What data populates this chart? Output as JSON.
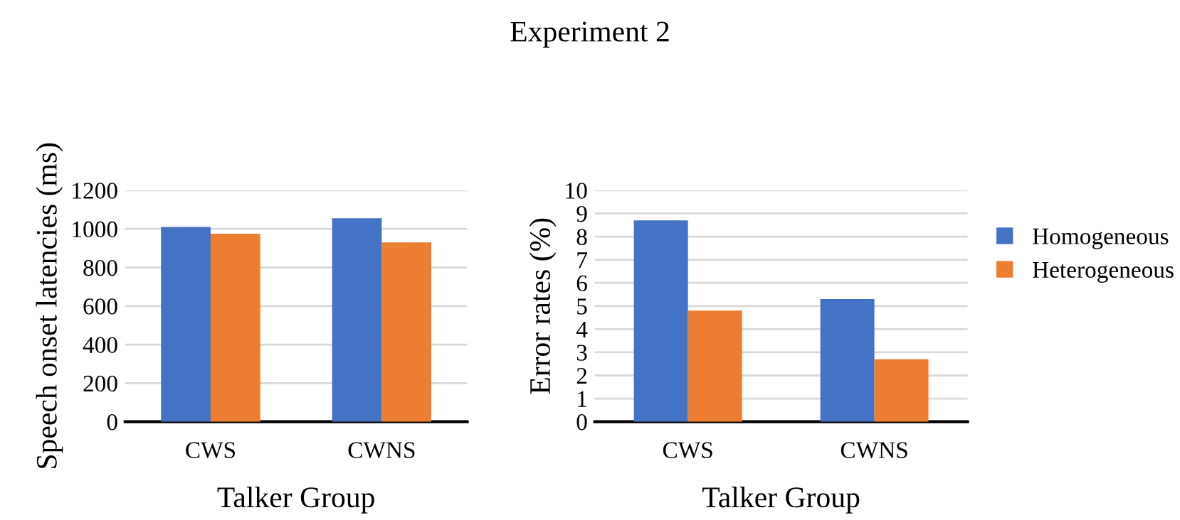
{
  "chart_data": [
    {
      "type": "bar",
      "xlabel": "Talker Group",
      "ylabel": "Speech onset latencies (ms)",
      "categories": [
        "CWS",
        "CWNS"
      ],
      "series": [
        {
          "color": "#4472c4",
          "values": [
            1010,
            1055
          ]
        },
        {
          "color": "#ed7d31",
          "values": [
            975,
            930
          ]
        }
      ],
      "ylim": [
        0,
        1200
      ],
      "yticks": [
        0,
        200,
        400,
        600,
        800,
        1000,
        1200
      ],
      "grid": "y",
      "legend": false
    },
    {
      "type": "bar",
      "title": "Experiment 2",
      "xlabel": "Talker Group",
      "ylabel": "Error rates (%)",
      "categories": [
        "CWS",
        "CWNS"
      ],
      "series": [
        {
          "name": "Homogeneous",
          "color": "#4472c4",
          "values": [
            8.7,
            5.3
          ]
        },
        {
          "name": "Heterogeneous",
          "color": "#ed7d31",
          "values": [
            4.8,
            2.7
          ]
        }
      ],
      "ylim": [
        0,
        10
      ],
      "yticks": [
        0,
        1,
        2,
        3,
        4,
        5,
        6,
        7,
        8,
        9,
        10
      ],
      "grid": "y",
      "legend": "right"
    }
  ]
}
